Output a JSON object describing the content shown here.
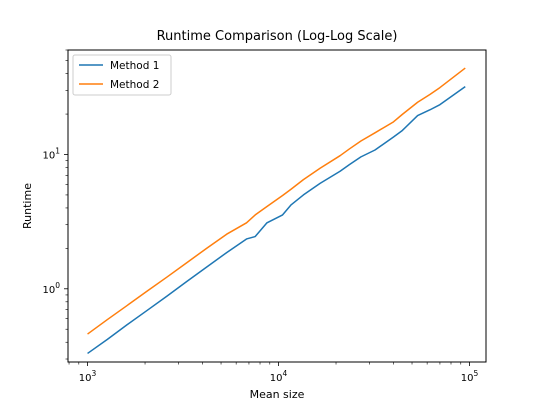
{
  "chart_data": {
    "type": "line",
    "title": "Runtime Comparison (Log-Log Scale)",
    "xlabel": "Mean size",
    "ylabel": "Runtime",
    "xscale": "log",
    "yscale": "log",
    "xlim": [
      790,
      122000
    ],
    "ylim": [
      0.285,
      60
    ],
    "grid": false,
    "legend_placement": "top-left",
    "x_ticks": [
      {
        "base": "10",
        "exp": "3",
        "value": 1000
      },
      {
        "base": "10",
        "exp": "4",
        "value": 10000
      },
      {
        "base": "10",
        "exp": "5",
        "value": 100000
      }
    ],
    "y_ticks": [
      {
        "base": "10",
        "exp": "0",
        "value": 1
      },
      {
        "base": "10",
        "exp": "1",
        "value": 10
      }
    ],
    "x": [
      1000,
      1270,
      1610,
      2050,
      2600,
      3300,
      4200,
      5350,
      6800,
      7550,
      8700,
      10500,
      11600,
      13500,
      16500,
      21000,
      23500,
      27000,
      32000,
      40000,
      44500,
      53500,
      62000,
      70000,
      95000
    ],
    "series": [
      {
        "name": "Method 1",
        "color": "#1f77b4",
        "values": [
          0.33,
          0.42,
          0.54,
          0.69,
          0.88,
          1.13,
          1.45,
          1.86,
          2.35,
          2.45,
          3.1,
          3.55,
          4.2,
          5.0,
          6.1,
          7.5,
          8.4,
          9.6,
          10.8,
          13.5,
          15.1,
          19.5,
          21.5,
          23.5,
          32.0
        ]
      },
      {
        "name": "Method 2",
        "color": "#ff7f0e",
        "values": [
          0.46,
          0.59,
          0.75,
          0.96,
          1.22,
          1.56,
          2.0,
          2.55,
          3.1,
          3.55,
          4.1,
          4.95,
          5.5,
          6.5,
          7.9,
          9.8,
          11.0,
          12.6,
          14.5,
          17.5,
          19.9,
          24.5,
          28.0,
          31.5,
          44.0
        ]
      }
    ]
  }
}
